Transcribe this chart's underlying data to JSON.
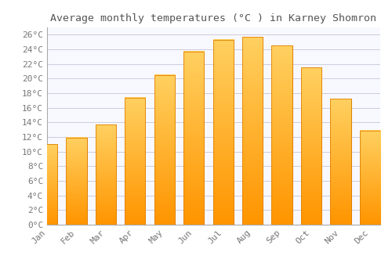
{
  "title": "Average monthly temperatures (°C ) in Karney Shomron",
  "months": [
    "Jan",
    "Feb",
    "Mar",
    "Apr",
    "May",
    "Jun",
    "Jul",
    "Aug",
    "Sep",
    "Oct",
    "Nov",
    "Dec"
  ],
  "temperatures": [
    11.0,
    11.9,
    13.7,
    17.4,
    20.5,
    23.7,
    25.3,
    25.7,
    24.5,
    21.5,
    17.2,
    12.9
  ],
  "bar_color_top": "#FFB732",
  "bar_color_bottom": "#FFA500",
  "bar_edge_color": "#E08000",
  "background_color": "#FFFFFF",
  "plot_bg_color": "#F8F8FF",
  "grid_color": "#CCCCDD",
  "text_color": "#555555",
  "tick_label_color": "#777777",
  "ylim": [
    0,
    27
  ],
  "ytick_step": 2,
  "title_fontsize": 9.5,
  "tick_fontsize": 8,
  "bar_width": 0.7
}
